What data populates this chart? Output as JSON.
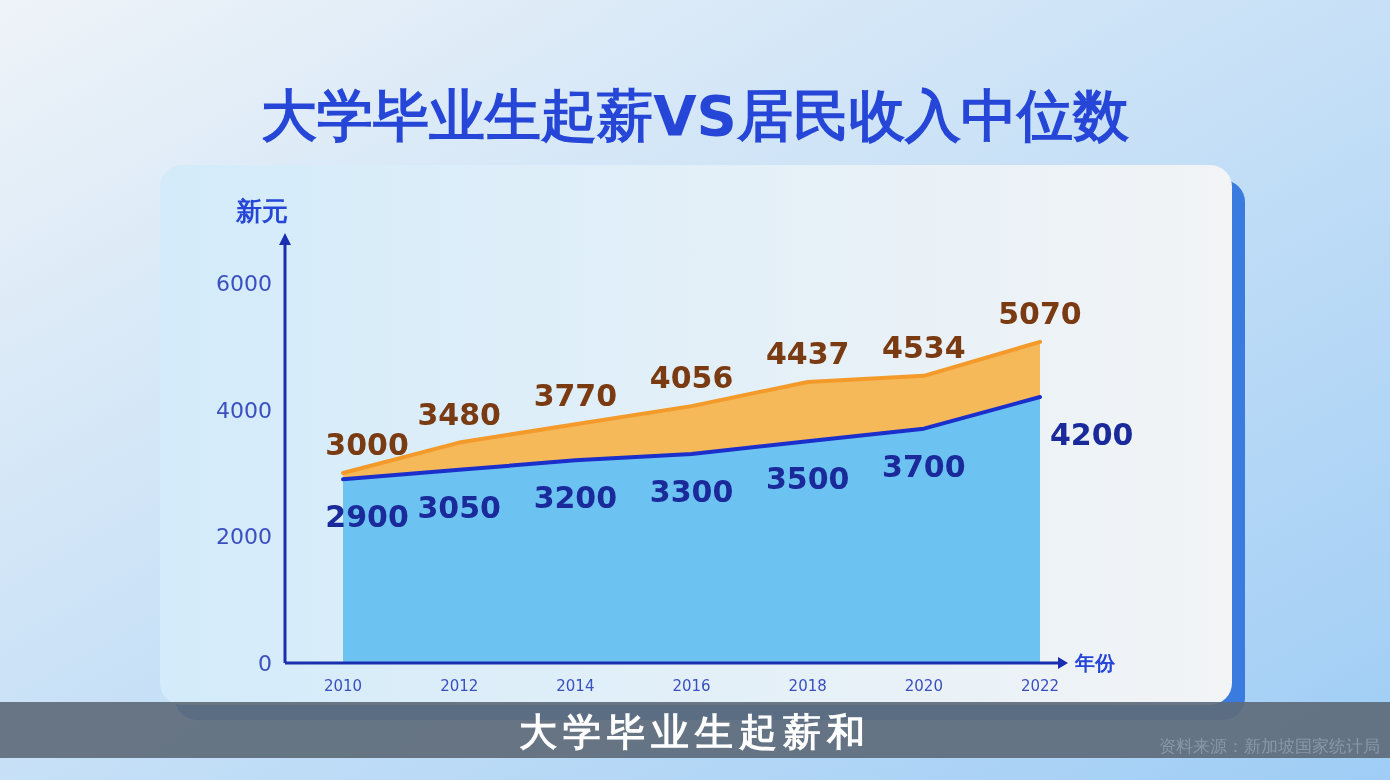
{
  "chart_data": {
    "type": "area",
    "title": "大学毕业生起薪VS居民收入中位数",
    "ylabel": "新元",
    "xlabel": "年份",
    "x": [
      2010,
      2012,
      2014,
      2016,
      2018,
      2020,
      2022
    ],
    "series": [
      {
        "color": "#f5b95a",
        "values": [
          3000,
          3480,
          3770,
          4056,
          4437,
          4534,
          5070
        ]
      },
      {
        "color": "#6cc3f2",
        "values": [
          2900,
          3050,
          3200,
          3300,
          3500,
          3700,
          4200
        ]
      }
    ],
    "xlim": [
      2009,
      2022
    ],
    "xticks": [
      2010,
      2012,
      2014,
      2016,
      2018,
      2020,
      2022
    ],
    "ylim": [
      0,
      6000
    ],
    "yticks": [
      0,
      2000,
      4000,
      6000
    ],
    "data_labels": true,
    "annotations": [
      "大学毕业生起薪和",
      "资料来源：新加坡国家统计局"
    ]
  }
}
